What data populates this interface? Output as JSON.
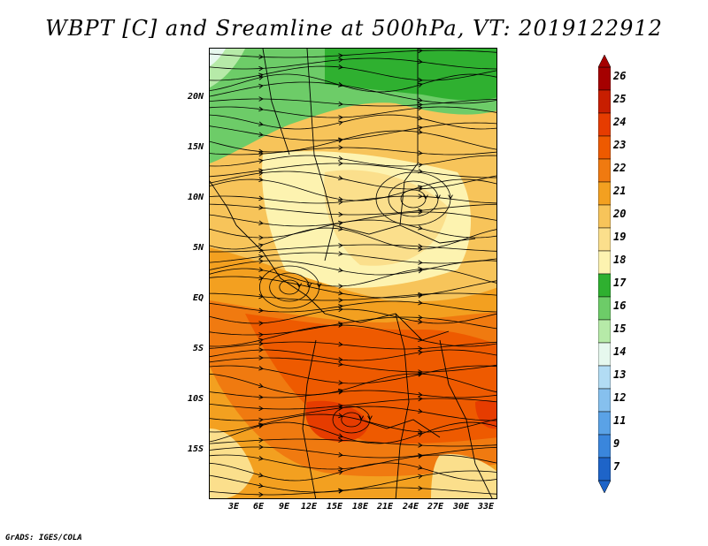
{
  "title": "WBPT [C] and Sreamline at 500hPa, VT: 2019122912",
  "credit": "GrADS: IGES/COLA",
  "lat_labels": [
    "20N",
    "15N",
    "10N",
    "5N",
    "EQ",
    "5S",
    "10S",
    "15S"
  ],
  "lon_labels": [
    "3E",
    "6E",
    "9E",
    "12E",
    "15E",
    "18E",
    "21E",
    "24E",
    "27E",
    "30E",
    "33E"
  ],
  "colorbar": {
    "labels": [
      "26",
      "25",
      "24",
      "23",
      "22",
      "21",
      "20",
      "19",
      "18",
      "17",
      "16",
      "15",
      "14",
      "13",
      "12",
      "11",
      "9",
      "7"
    ],
    "colors": [
      "#a50000",
      "#c81e00",
      "#e63c00",
      "#ee5a00",
      "#f07a10",
      "#f3a020",
      "#f7c45a",
      "#fbdf8c",
      "#fdf3b0",
      "#2fb030",
      "#6dcc68",
      "#b6eaa8",
      "#e6f8ee",
      "#b2dcf4",
      "#86c0ee",
      "#5aa2e6",
      "#3a86dc",
      "#1e64c8"
    ]
  },
  "shading_colors": {
    "green_dark": "#2fb030",
    "green_mid": "#6dcc68",
    "green_light": "#b6eaa8",
    "cyan_light": "#e6f8ee",
    "pale_yellow": "#fdf3b0",
    "light_orange": "#fbdf8c",
    "tan": "#f7c45a",
    "orange": "#f3a020",
    "dark_orange": "#f07a10",
    "red_orange": "#ee5a00",
    "red": "#e63c00"
  }
}
